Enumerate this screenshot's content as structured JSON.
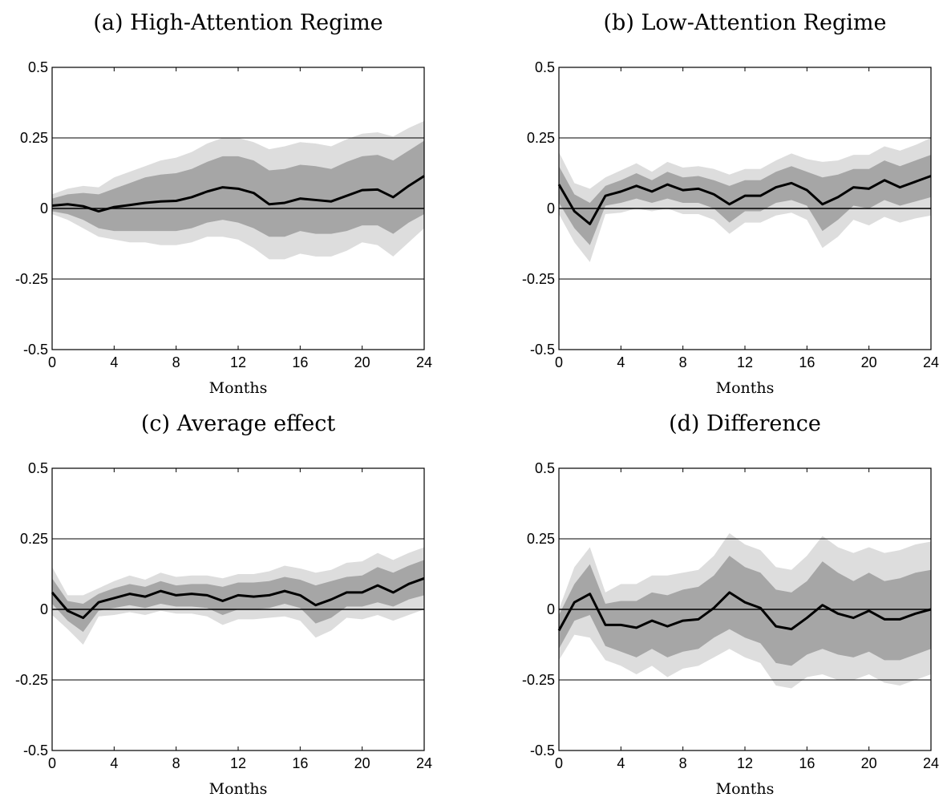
{
  "chart_data": [
    {
      "type": "area",
      "title": "(a) High-Attention Regime",
      "xlabel": "Months",
      "ylabel": "",
      "xlim": [
        0,
        24
      ],
      "ylim": [
        -0.5,
        0.5
      ],
      "xticks": [
        0,
        4,
        8,
        12,
        16,
        20,
        24
      ],
      "yticks": [
        -0.5,
        -0.25,
        0,
        0.25,
        0.5
      ],
      "ytick_labels": [
        "-0.5",
        "-0.25",
        "0",
        "0.25",
        "0.5"
      ],
      "grid": "horizontal",
      "band_colors": {
        "outer": "#dddddd",
        "inner": "#a6a6a6"
      },
      "x": [
        0,
        1,
        2,
        3,
        4,
        5,
        6,
        7,
        8,
        9,
        10,
        11,
        12,
        13,
        14,
        15,
        16,
        17,
        18,
        19,
        20,
        21,
        22,
        23,
        24
      ],
      "series": [
        {
          "values": [
            0.01,
            0.015,
            0.008,
            -0.01,
            0.005,
            0.012,
            0.02,
            0.025,
            0.027,
            0.04,
            0.06,
            0.075,
            0.07,
            0.055,
            0.015,
            0.02,
            0.035,
            0.03,
            0.025,
            0.045,
            0.065,
            0.067,
            0.04,
            0.08,
            0.115
          ]
        },
        {
          "values": [
            -0.02,
            -0.04,
            -0.07,
            -0.1,
            -0.11,
            -0.12,
            -0.12,
            -0.13,
            -0.13,
            -0.12,
            -0.1,
            -0.1,
            -0.11,
            -0.14,
            -0.18,
            -0.18,
            -0.16,
            -0.17,
            -0.17,
            -0.15,
            -0.12,
            -0.13,
            -0.17,
            -0.12,
            -0.07
          ]
        },
        {
          "values": [
            -0.01,
            -0.02,
            -0.04,
            -0.07,
            -0.08,
            -0.08,
            -0.08,
            -0.08,
            -0.08,
            -0.07,
            -0.05,
            -0.04,
            -0.05,
            -0.07,
            -0.1,
            -0.1,
            -0.08,
            -0.09,
            -0.09,
            -0.08,
            -0.06,
            -0.06,
            -0.09,
            -0.05,
            -0.02
          ]
        },
        {
          "values": [
            0.035,
            0.05,
            0.055,
            0.05,
            0.07,
            0.09,
            0.11,
            0.12,
            0.125,
            0.14,
            0.165,
            0.185,
            0.185,
            0.17,
            0.135,
            0.14,
            0.155,
            0.15,
            0.14,
            0.165,
            0.185,
            0.19,
            0.17,
            0.205,
            0.24
          ]
        },
        {
          "values": [
            0.05,
            0.07,
            0.08,
            0.075,
            0.11,
            0.13,
            0.15,
            0.17,
            0.18,
            0.2,
            0.23,
            0.25,
            0.25,
            0.235,
            0.21,
            0.22,
            0.235,
            0.23,
            0.22,
            0.245,
            0.265,
            0.27,
            0.255,
            0.285,
            0.31
          ]
        }
      ]
    },
    {
      "type": "area",
      "title": "(b) Low-Attention Regime",
      "xlabel": "Months",
      "ylabel": "",
      "xlim": [
        0,
        24
      ],
      "ylim": [
        -0.5,
        0.5
      ],
      "xticks": [
        0,
        4,
        8,
        12,
        16,
        20,
        24
      ],
      "yticks": [
        -0.5,
        -0.25,
        0,
        0.25,
        0.5
      ],
      "ytick_labels": [
        "-0.5",
        "-0.25",
        "0",
        "0.25",
        "0.5"
      ],
      "grid": "horizontal",
      "band_colors": {
        "outer": "#dddddd",
        "inner": "#a6a6a6"
      },
      "x": [
        0,
        1,
        2,
        3,
        4,
        5,
        6,
        7,
        8,
        9,
        10,
        11,
        12,
        13,
        14,
        15,
        16,
        17,
        18,
        19,
        20,
        21,
        22,
        23,
        24
      ],
      "series": [
        {
          "values": [
            0.085,
            -0.01,
            -0.055,
            0.045,
            0.06,
            0.08,
            0.06,
            0.085,
            0.065,
            0.07,
            0.05,
            0.015,
            0.045,
            0.045,
            0.075,
            0.09,
            0.065,
            0.015,
            0.04,
            0.075,
            0.07,
            0.1,
            0.075,
            0.095,
            0.115
          ]
        },
        {
          "values": [
            -0.02,
            -0.12,
            -0.19,
            -0.02,
            -0.015,
            0.0,
            -0.01,
            0.0,
            -0.02,
            -0.02,
            -0.04,
            -0.09,
            -0.05,
            -0.05,
            -0.025,
            -0.015,
            -0.04,
            -0.14,
            -0.1,
            -0.04,
            -0.06,
            -0.03,
            -0.05,
            -0.035,
            -0.025
          ]
        },
        {
          "values": [
            0.02,
            -0.07,
            -0.13,
            0.01,
            0.02,
            0.035,
            0.02,
            0.035,
            0.02,
            0.02,
            0.0,
            -0.05,
            -0.01,
            -0.01,
            0.02,
            0.03,
            0.01,
            -0.08,
            -0.04,
            0.01,
            0.0,
            0.03,
            0.01,
            0.025,
            0.04
          ]
        },
        {
          "values": [
            0.15,
            0.05,
            0.02,
            0.08,
            0.1,
            0.125,
            0.1,
            0.13,
            0.11,
            0.115,
            0.1,
            0.08,
            0.1,
            0.1,
            0.13,
            0.15,
            0.13,
            0.11,
            0.12,
            0.14,
            0.14,
            0.17,
            0.15,
            0.17,
            0.19
          ]
        },
        {
          "values": [
            0.2,
            0.09,
            0.07,
            0.11,
            0.135,
            0.16,
            0.13,
            0.165,
            0.145,
            0.15,
            0.14,
            0.12,
            0.14,
            0.14,
            0.17,
            0.195,
            0.175,
            0.165,
            0.17,
            0.19,
            0.19,
            0.22,
            0.205,
            0.225,
            0.25
          ]
        }
      ]
    },
    {
      "type": "area",
      "title": "(c) Average effect",
      "xlabel": "Months",
      "ylabel": "",
      "xlim": [
        0,
        24
      ],
      "ylim": [
        -0.5,
        0.5
      ],
      "xticks": [
        0,
        4,
        8,
        12,
        16,
        20,
        24
      ],
      "yticks": [
        -0.5,
        -0.25,
        0,
        0.25,
        0.5
      ],
      "ytick_labels": [
        "-0.5",
        "-0.25",
        "0",
        "0.25",
        "0.5"
      ],
      "grid": "horizontal",
      "band_colors": {
        "outer": "#dddddd",
        "inner": "#a6a6a6"
      },
      "x": [
        0,
        1,
        2,
        3,
        4,
        5,
        6,
        7,
        8,
        9,
        10,
        11,
        12,
        13,
        14,
        15,
        16,
        17,
        18,
        19,
        20,
        21,
        22,
        23,
        24
      ],
      "series": [
        {
          "values": [
            0.06,
            -0.005,
            -0.03,
            0.025,
            0.04,
            0.055,
            0.045,
            0.065,
            0.05,
            0.055,
            0.05,
            0.03,
            0.05,
            0.045,
            0.05,
            0.065,
            0.05,
            0.015,
            0.035,
            0.06,
            0.06,
            0.085,
            0.06,
            0.09,
            0.11
          ]
        },
        {
          "values": [
            -0.02,
            -0.07,
            -0.125,
            -0.025,
            -0.02,
            -0.01,
            -0.02,
            -0.005,
            -0.015,
            -0.015,
            -0.025,
            -0.055,
            -0.035,
            -0.035,
            -0.03,
            -0.025,
            -0.04,
            -0.1,
            -0.075,
            -0.03,
            -0.035,
            -0.02,
            -0.04,
            -0.02,
            0.0
          ]
        },
        {
          "values": [
            0.02,
            -0.04,
            -0.08,
            -0.005,
            0.005,
            0.015,
            0.005,
            0.02,
            0.01,
            0.01,
            0.005,
            -0.02,
            0.0,
            0.0,
            0.005,
            0.02,
            0.005,
            -0.05,
            -0.03,
            0.01,
            0.01,
            0.025,
            0.01,
            0.035,
            0.05
          ]
        },
        {
          "values": [
            0.11,
            0.03,
            0.02,
            0.055,
            0.075,
            0.09,
            0.08,
            0.1,
            0.085,
            0.09,
            0.09,
            0.08,
            0.095,
            0.095,
            0.1,
            0.115,
            0.105,
            0.085,
            0.1,
            0.115,
            0.12,
            0.15,
            0.13,
            0.155,
            0.175
          ]
        },
        {
          "values": [
            0.15,
            0.05,
            0.05,
            0.075,
            0.1,
            0.12,
            0.105,
            0.13,
            0.115,
            0.12,
            0.12,
            0.11,
            0.125,
            0.125,
            0.135,
            0.155,
            0.145,
            0.13,
            0.14,
            0.165,
            0.17,
            0.2,
            0.175,
            0.2,
            0.22
          ]
        }
      ]
    },
    {
      "type": "area",
      "title": "(d) Difference",
      "xlabel": "Months",
      "ylabel": "",
      "xlim": [
        0,
        24
      ],
      "ylim": [
        -0.5,
        0.5
      ],
      "xticks": [
        0,
        4,
        8,
        12,
        16,
        20,
        24
      ],
      "yticks": [
        -0.5,
        -0.25,
        0,
        0.25,
        0.5
      ],
      "ytick_labels": [
        "-0.5",
        "-0.25",
        "0",
        "0.25",
        "0.5"
      ],
      "grid": "horizontal",
      "band_colors": {
        "outer": "#dddddd",
        "inner": "#a6a6a6"
      },
      "x": [
        0,
        1,
        2,
        3,
        4,
        5,
        6,
        7,
        8,
        9,
        10,
        11,
        12,
        13,
        14,
        15,
        16,
        17,
        18,
        19,
        20,
        21,
        22,
        23,
        24
      ],
      "series": [
        {
          "values": [
            -0.075,
            0.025,
            0.055,
            -0.055,
            -0.055,
            -0.065,
            -0.04,
            -0.06,
            -0.04,
            -0.035,
            0.005,
            0.06,
            0.025,
            0.005,
            -0.06,
            -0.07,
            -0.03,
            0.015,
            -0.015,
            -0.03,
            -0.005,
            -0.035,
            -0.035,
            -0.015,
            0.0
          ]
        },
        {
          "values": [
            -0.18,
            -0.09,
            -0.1,
            -0.18,
            -0.2,
            -0.23,
            -0.2,
            -0.24,
            -0.21,
            -0.2,
            -0.17,
            -0.14,
            -0.17,
            -0.19,
            -0.27,
            -0.28,
            -0.24,
            -0.23,
            -0.25,
            -0.25,
            -0.23,
            -0.26,
            -0.27,
            -0.25,
            -0.23
          ]
        },
        {
          "values": [
            -0.14,
            -0.04,
            -0.02,
            -0.13,
            -0.15,
            -0.17,
            -0.14,
            -0.17,
            -0.15,
            -0.14,
            -0.1,
            -0.07,
            -0.1,
            -0.12,
            -0.19,
            -0.2,
            -0.16,
            -0.14,
            -0.16,
            -0.17,
            -0.15,
            -0.18,
            -0.18,
            -0.16,
            -0.14
          ]
        },
        {
          "values": [
            -0.02,
            0.09,
            0.16,
            0.02,
            0.03,
            0.03,
            0.06,
            0.05,
            0.07,
            0.08,
            0.12,
            0.19,
            0.15,
            0.13,
            0.07,
            0.06,
            0.1,
            0.17,
            0.13,
            0.1,
            0.13,
            0.1,
            0.11,
            0.13,
            0.14
          ]
        },
        {
          "values": [
            0.0,
            0.15,
            0.22,
            0.06,
            0.09,
            0.09,
            0.12,
            0.12,
            0.13,
            0.14,
            0.19,
            0.27,
            0.23,
            0.21,
            0.15,
            0.14,
            0.19,
            0.26,
            0.22,
            0.2,
            0.22,
            0.2,
            0.21,
            0.23,
            0.24
          ]
        }
      ]
    }
  ]
}
